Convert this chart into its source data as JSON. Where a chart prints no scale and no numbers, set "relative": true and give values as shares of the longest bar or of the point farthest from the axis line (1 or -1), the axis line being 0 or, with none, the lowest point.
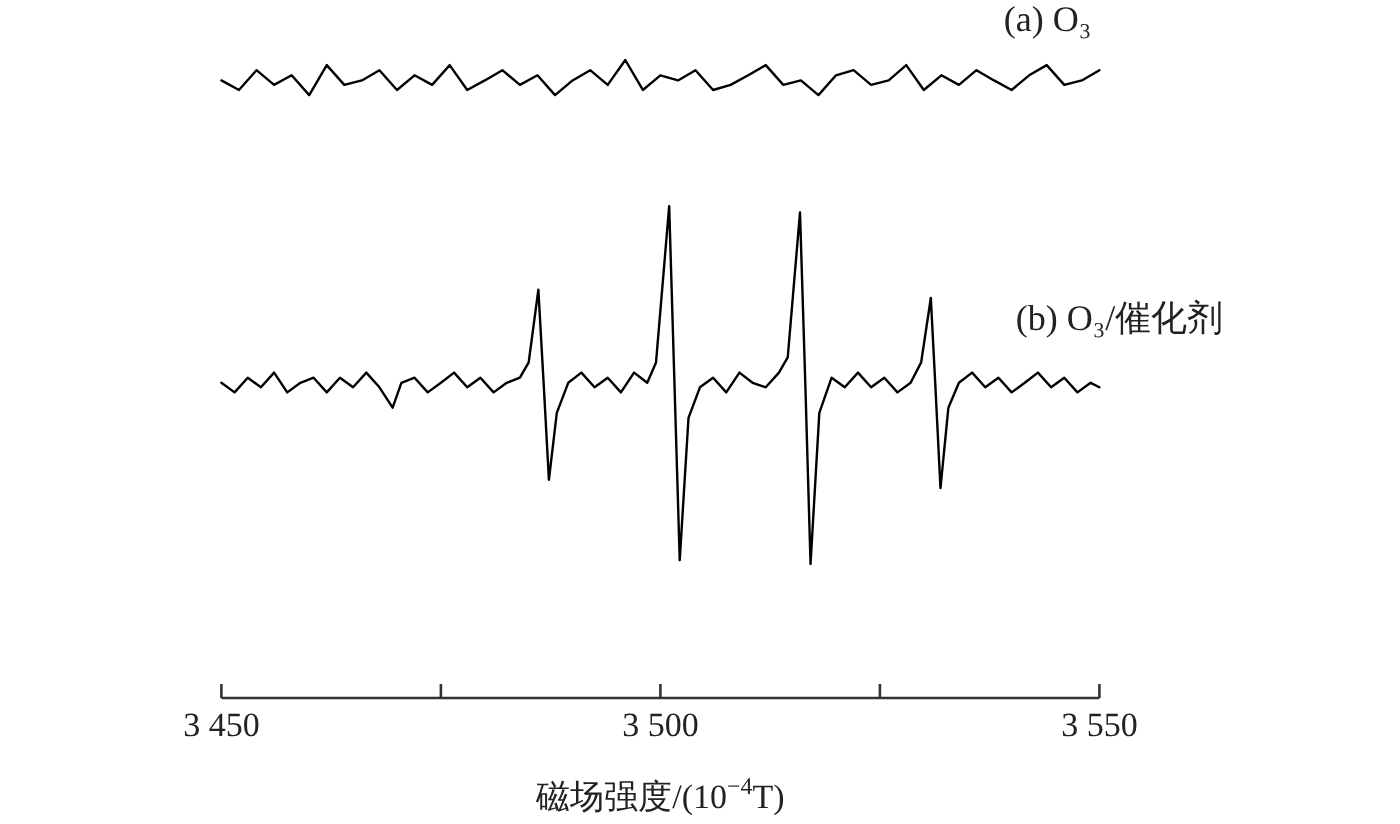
{
  "chart_data": {
    "type": "line",
    "relative": true,
    "xlabel": "磁场强度/(10$^{−4}$T)",
    "xlim": [
      3450,
      3550
    ],
    "xticks": [
      {
        "value": 3450,
        "label": "3 450"
      },
      {
        "value": 3475,
        "label": null
      },
      {
        "value": 3500,
        "label": "3 500"
      },
      {
        "value": 3525,
        "label": null
      },
      {
        "value": 3550,
        "label": "3 550"
      }
    ],
    "series": [
      {
        "name": "(a) O₃",
        "color": "#000000",
        "x": [
          3450,
          3452,
          3454,
          3456,
          3458,
          3460,
          3462,
          3464,
          3466,
          3468,
          3470,
          3472,
          3474,
          3476,
          3478,
          3480,
          3482,
          3484,
          3486,
          3488,
          3490,
          3492,
          3494,
          3496,
          3498,
          3500,
          3502,
          3504,
          3506,
          3508,
          3510,
          3512,
          3514,
          3516,
          3518,
          3520,
          3522,
          3524,
          3526,
          3528,
          3530,
          3532,
          3534,
          3536,
          3538,
          3540,
          3542,
          3544,
          3546,
          3548,
          3550
        ],
        "values": [
          0.968,
          0.953,
          0.984,
          0.961,
          0.976,
          0.945,
          0.992,
          0.961,
          0.968,
          0.984,
          0.953,
          0.976,
          0.961,
          0.992,
          0.953,
          0.968,
          0.984,
          0.961,
          0.976,
          0.945,
          0.968,
          0.984,
          0.961,
          1.0,
          0.953,
          0.976,
          0.968,
          0.984,
          0.953,
          0.961,
          0.976,
          0.992,
          0.961,
          0.968,
          0.945,
          0.976,
          0.984,
          0.961,
          0.968,
          0.992,
          0.953,
          0.976,
          0.961,
          0.984,
          0.968,
          0.953,
          0.976,
          0.992,
          0.961,
          0.968,
          0.984
        ]
      },
      {
        "name": "(b) O₃/催化剂",
        "color": "#000000",
        "x": [
          3450,
          3451.5,
          3453,
          3454.5,
          3456,
          3457.5,
          3459,
          3460.5,
          3462,
          3463.5,
          3465,
          3466.5,
          3468,
          3469.5,
          3470.5,
          3472,
          3473.5,
          3475,
          3476.5,
          3478,
          3479.5,
          3481,
          3482.5,
          3484,
          3485,
          3486.1,
          3486.7,
          3487.3,
          3488.2,
          3489.5,
          3491,
          3492.5,
          3494,
          3495.5,
          3497,
          3498.5,
          3499.5,
          3501.0,
          3501.6,
          3502.2,
          3503.2,
          3504.5,
          3506,
          3507.5,
          3509,
          3510.5,
          3512,
          3513.5,
          3514.5,
          3515.9,
          3516.5,
          3517.1,
          3518.1,
          3519.5,
          3521,
          3522.5,
          3524,
          3525.5,
          3527,
          3528.5,
          3529.7,
          3530.8,
          3531.3,
          3531.9,
          3532.8,
          3534,
          3535.5,
          3537,
          3538.5,
          3540,
          3541.5,
          3543,
          3544.5,
          3546,
          3547.5,
          3549,
          3550
        ],
        "values": [
          0.494,
          0.479,
          0.502,
          0.487,
          0.51,
          0.479,
          0.494,
          0.502,
          0.479,
          0.502,
          0.487,
          0.51,
          0.487,
          0.455,
          0.494,
          0.502,
          0.479,
          0.494,
          0.51,
          0.487,
          0.502,
          0.479,
          0.494,
          0.502,
          0.526,
          0.64,
          0.494,
          0.342,
          0.447,
          0.494,
          0.51,
          0.487,
          0.502,
          0.479,
          0.51,
          0.494,
          0.526,
          0.771,
          0.494,
          0.216,
          0.439,
          0.487,
          0.502,
          0.479,
          0.51,
          0.494,
          0.487,
          0.51,
          0.534,
          0.761,
          0.494,
          0.21,
          0.447,
          0.502,
          0.487,
          0.51,
          0.487,
          0.502,
          0.479,
          0.494,
          0.526,
          0.627,
          0.494,
          0.329,
          0.455,
          0.494,
          0.51,
          0.487,
          0.502,
          0.479,
          0.494,
          0.51,
          0.487,
          0.502,
          0.479,
          0.494,
          0.487
        ]
      }
    ]
  }
}
